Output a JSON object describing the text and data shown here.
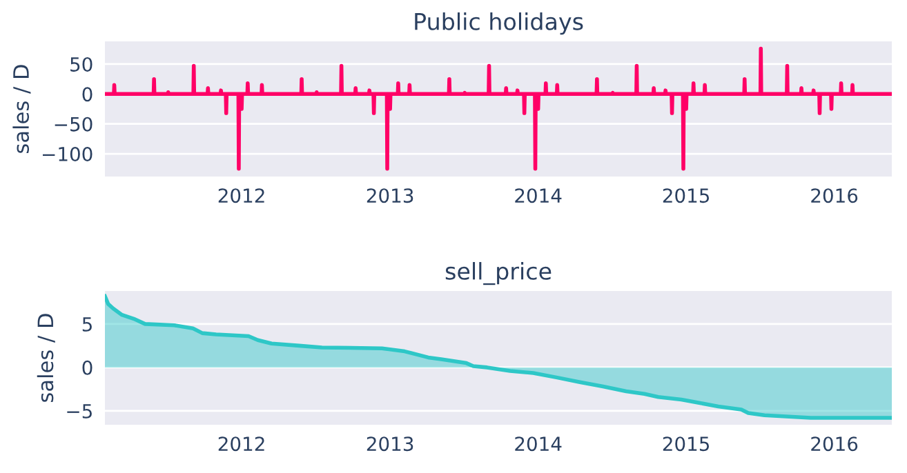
{
  "chart_data": [
    {
      "type": "line",
      "title": "Public holidays",
      "ylabel": "sales / D",
      "grid": "y",
      "xlim": [
        "2011-01-29",
        "2016-05-22"
      ],
      "ylim": [
        -138,
        88
      ],
      "xticks": [
        "2012",
        "2013",
        "2014",
        "2015",
        "2016"
      ],
      "yticks": [
        {
          "value": -100,
          "label": "−100"
        },
        {
          "value": -50,
          "label": "−50"
        },
        0,
        50
      ],
      "series": [
        {
          "color": "#ff0066",
          "x": [
            "2011-01-29",
            "2011-02-20",
            "2011-02-21",
            "2011-02-22",
            "2011-05-29",
            "2011-05-30",
            "2011-05-31",
            "2011-07-03",
            "2011-07-04",
            "2011-07-05",
            "2011-09-04",
            "2011-09-05",
            "2011-09-06",
            "2011-10-09",
            "2011-10-10",
            "2011-10-11",
            "2011-11-10",
            "2011-11-11",
            "2011-11-12",
            "2011-11-23",
            "2011-11-24",
            "2011-11-25",
            "2011-12-24",
            "2011-12-25",
            "2011-12-26",
            "2011-12-31",
            "2012-01-01",
            "2012-01-02",
            "2012-01-15",
            "2012-01-16",
            "2012-01-17",
            "2012-02-19",
            "2012-02-20",
            "2012-02-21",
            "2012-05-27",
            "2012-05-28",
            "2012-05-29",
            "2012-07-03",
            "2012-07-04",
            "2012-07-05",
            "2012-09-02",
            "2012-09-03",
            "2012-09-04",
            "2012-10-07",
            "2012-10-08",
            "2012-10-09",
            "2012-11-10",
            "2012-11-11",
            "2012-11-12",
            "2012-11-21",
            "2012-11-22",
            "2012-11-23",
            "2012-12-24",
            "2012-12-25",
            "2012-12-26",
            "2012-12-31",
            "2013-01-01",
            "2013-01-02",
            "2013-01-20",
            "2013-01-21",
            "2013-01-22",
            "2013-02-17",
            "2013-02-18",
            "2013-02-19",
            "2013-05-26",
            "2013-05-27",
            "2013-05-28",
            "2013-07-03",
            "2013-07-04",
            "2013-07-05",
            "2013-09-01",
            "2013-09-02",
            "2013-09-03",
            "2013-10-13",
            "2013-10-14",
            "2013-10-15",
            "2013-11-10",
            "2013-11-11",
            "2013-11-12",
            "2013-11-27",
            "2013-11-28",
            "2013-11-29",
            "2013-12-24",
            "2013-12-25",
            "2013-12-26",
            "2013-12-31",
            "2014-01-01",
            "2014-01-02",
            "2014-01-19",
            "2014-01-20",
            "2014-01-21",
            "2014-02-16",
            "2014-02-17",
            "2014-02-18",
            "2014-05-25",
            "2014-05-26",
            "2014-05-27",
            "2014-07-03",
            "2014-07-04",
            "2014-07-05",
            "2014-08-31",
            "2014-09-01",
            "2014-09-02",
            "2014-10-12",
            "2014-10-13",
            "2014-10-14",
            "2014-11-10",
            "2014-11-11",
            "2014-11-12",
            "2014-11-26",
            "2014-11-27",
            "2014-11-28",
            "2014-12-24",
            "2014-12-25",
            "2014-12-26",
            "2014-12-31",
            "2015-01-01",
            "2015-01-02",
            "2015-01-18",
            "2015-01-19",
            "2015-01-20",
            "2015-02-15",
            "2015-02-16",
            "2015-02-17",
            "2015-05-24",
            "2015-05-25",
            "2015-05-26",
            "2015-07-03",
            "2015-07-04",
            "2015-07-05",
            "2015-09-06",
            "2015-09-07",
            "2015-09-08",
            "2015-10-11",
            "2015-10-12",
            "2015-10-13",
            "2015-11-10",
            "2015-11-11",
            "2015-11-12",
            "2015-11-25",
            "2015-11-26",
            "2015-11-27",
            "2015-12-24",
            "2015-12-25",
            "2015-12-26",
            "2016-01-17",
            "2016-01-18",
            "2016-01-19",
            "2016-02-14",
            "2016-02-15",
            "2016-02-16",
            "2016-05-22"
          ],
          "values": [
            0,
            0,
            15,
            0,
            0,
            25,
            0,
            0,
            3,
            0,
            0,
            47,
            0,
            0,
            10,
            0,
            0,
            6,
            0,
            0,
            -32,
            0,
            0,
            -125,
            0,
            0,
            -25,
            0,
            0,
            18,
            0,
            0,
            15,
            0,
            0,
            25,
            0,
            0,
            3,
            0,
            0,
            47,
            0,
            0,
            10,
            0,
            0,
            6,
            0,
            0,
            -32,
            0,
            0,
            -125,
            0,
            0,
            -25,
            0,
            0,
            18,
            0,
            0,
            15,
            0,
            0,
            25,
            0,
            0,
            2,
            0,
            0,
            47,
            0,
            0,
            10,
            0,
            0,
            6,
            0,
            0,
            -32,
            0,
            0,
            -125,
            0,
            0,
            -25,
            0,
            0,
            18,
            0,
            0,
            15,
            0,
            0,
            25,
            0,
            0,
            2,
            0,
            0,
            47,
            0,
            0,
            10,
            0,
            0,
            6,
            0,
            0,
            -32,
            0,
            0,
            -125,
            0,
            0,
            -25,
            0,
            0,
            18,
            0,
            0,
            15,
            0,
            0,
            25,
            0,
            0,
            76,
            0,
            0,
            47,
            0,
            0,
            10,
            0,
            0,
            6,
            0,
            0,
            -32,
            0,
            0,
            -25,
            0,
            0,
            18,
            0,
            0,
            15,
            0,
            0
          ]
        }
      ]
    },
    {
      "type": "area",
      "title": "sell_price",
      "ylabel": "sales / D",
      "grid": "y",
      "xlim": [
        "2011-01-29",
        "2016-05-22"
      ],
      "ylim": [
        -6.6,
        8.8
      ],
      "xticks": [
        "2012",
        "2013",
        "2014",
        "2015",
        "2016"
      ],
      "yticks": [
        {
          "value": -5,
          "label": "−5"
        },
        0,
        5
      ],
      "series": [
        {
          "color": "#2ec7c7",
          "x": [
            "2011-01-29",
            "2011-02-06",
            "2011-02-18",
            "2011-03-12",
            "2011-04-10",
            "2011-05-08",
            "2011-07-19",
            "2011-09-03",
            "2011-09-26",
            "2011-10-30",
            "2012-01-18",
            "2012-02-10",
            "2012-03-15",
            "2012-05-22",
            "2012-07-17",
            "2012-12-12",
            "2013-02-06",
            "2013-04-05",
            "2013-05-07",
            "2013-07-08",
            "2013-07-25",
            "2013-08-28",
            "2013-10-24",
            "2013-12-20",
            "2014-02-15",
            "2014-04-14",
            "2014-06-10",
            "2014-08-06",
            "2014-09-20",
            "2014-10-24",
            "2014-12-20",
            "2015-02-04",
            "2015-03-21",
            "2015-05-17",
            "2015-06-03",
            "2015-07-13",
            "2015-11-04",
            "2016-05-22"
          ],
          "values": [
            8.2,
            7.3,
            6.8,
            6.05,
            5.6,
            5.0,
            4.85,
            4.5,
            3.95,
            3.8,
            3.6,
            3.15,
            2.75,
            2.5,
            2.3,
            2.2,
            1.85,
            1.15,
            0.95,
            0.5,
            0.15,
            0,
            -0.4,
            -0.65,
            -1.15,
            -1.7,
            -2.2,
            -2.75,
            -3.05,
            -3.4,
            -3.7,
            -4.1,
            -4.5,
            -4.85,
            -5.25,
            -5.5,
            -5.8,
            -5.8
          ]
        }
      ]
    }
  ]
}
